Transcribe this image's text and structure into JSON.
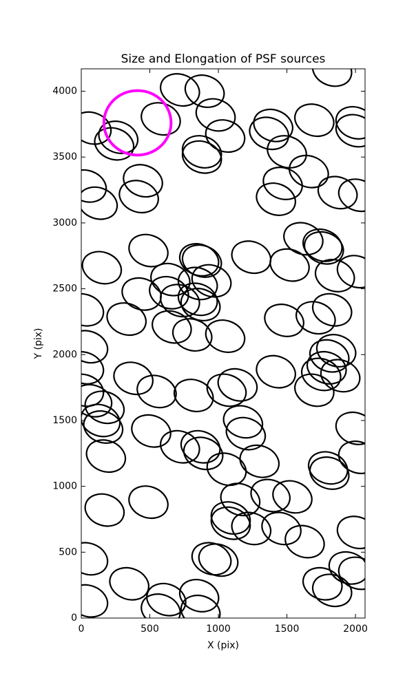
{
  "chart_data": {
    "type": "ellipses",
    "title": "Size and Elongation of PSF sources",
    "xlabel": "X (pix)",
    "ylabel": "Y (pix)",
    "xlim": [
      0,
      2070
    ],
    "ylim": [
      0,
      4170
    ],
    "xticks": [
      0,
      500,
      1000,
      1500,
      2000
    ],
    "yticks": [
      0,
      500,
      1000,
      1500,
      2000,
      2500,
      3000,
      3500,
      4000
    ],
    "color": "#000000",
    "ellipse": {
      "width": 290,
      "height": 235,
      "angle": -20
    },
    "x": [
      75,
      270,
      240,
      720,
      900,
      980,
      1050,
      880,
      880,
      580,
      1400,
      1370,
      1700,
      2000,
      2000,
      1830,
      1500,
      1660,
      1470,
      1420,
      1870,
      2020,
      40,
      120,
      450,
      420,
      1620,
      1760,
      1770,
      490,
      150,
      860,
      880,
      1240,
      1520,
      1850,
      2010,
      650,
      850,
      950,
      850,
      870,
      640,
      720,
      440,
      20,
      330,
      660,
      810,
      1050,
      1480,
      1710,
      1830,
      50,
      20,
      1810,
      1860,
      1790,
      1890,
      1750,
      1700,
      1420,
      380,
      550,
      820,
      1060,
      1140,
      20,
      80,
      170,
      140,
      160,
      180,
      510,
      720,
      870,
      890,
      1060,
      1180,
      1200,
      1300,
      2000,
      2020,
      1800,
      1810,
      1160,
      1380,
      1540,
      1090,
      1090,
      1240,
      1460,
      1630,
      490,
      170,
      2010,
      50,
      950,
      1000,
      350,
      620,
      580,
      860,
      870,
      1760,
      1830,
      1950,
      2020,
      50
    ],
    "y": [
      3720,
      3650,
      3600,
      4010,
      4000,
      3820,
      3660,
      3540,
      3500,
      3790,
      3740,
      3680,
      3780,
      3760,
      3700,
      4160,
      3540,
      3390,
      3300,
      3180,
      3230,
      3210,
      3280,
      3150,
      3320,
      3200,
      2880,
      2830,
      2810,
      2790,
      2660,
      2720,
      2710,
      2740,
      2680,
      2600,
      2630,
      2570,
      2540,
      2560,
      2420,
      2380,
      2470,
      2410,
      2460,
      2340,
      2270,
      2210,
      2150,
      2140,
      2260,
      2280,
      2340,
      2060,
      1900,
      1990,
      2030,
      1900,
      1840,
      1850,
      1730,
      1870,
      1820,
      1720,
      1690,
      1730,
      1770,
      1730,
      1650,
      1600,
      1500,
      1450,
      1230,
      1420,
      1300,
      1300,
      1250,
      1130,
      1490,
      1400,
      1190,
      1440,
      1220,
      1140,
      1100,
      900,
      930,
      920,
      760,
      720,
      680,
      680,
      580,
      880,
      820,
      650,
      450,
      450,
      440,
      260,
      140,
      60,
      170,
      50,
      260,
      210,
      380,
      340,
      130
    ],
    "highlight": {
      "x": 410,
      "y": 3760,
      "radius": 245,
      "color": "#ff00ff"
    }
  }
}
